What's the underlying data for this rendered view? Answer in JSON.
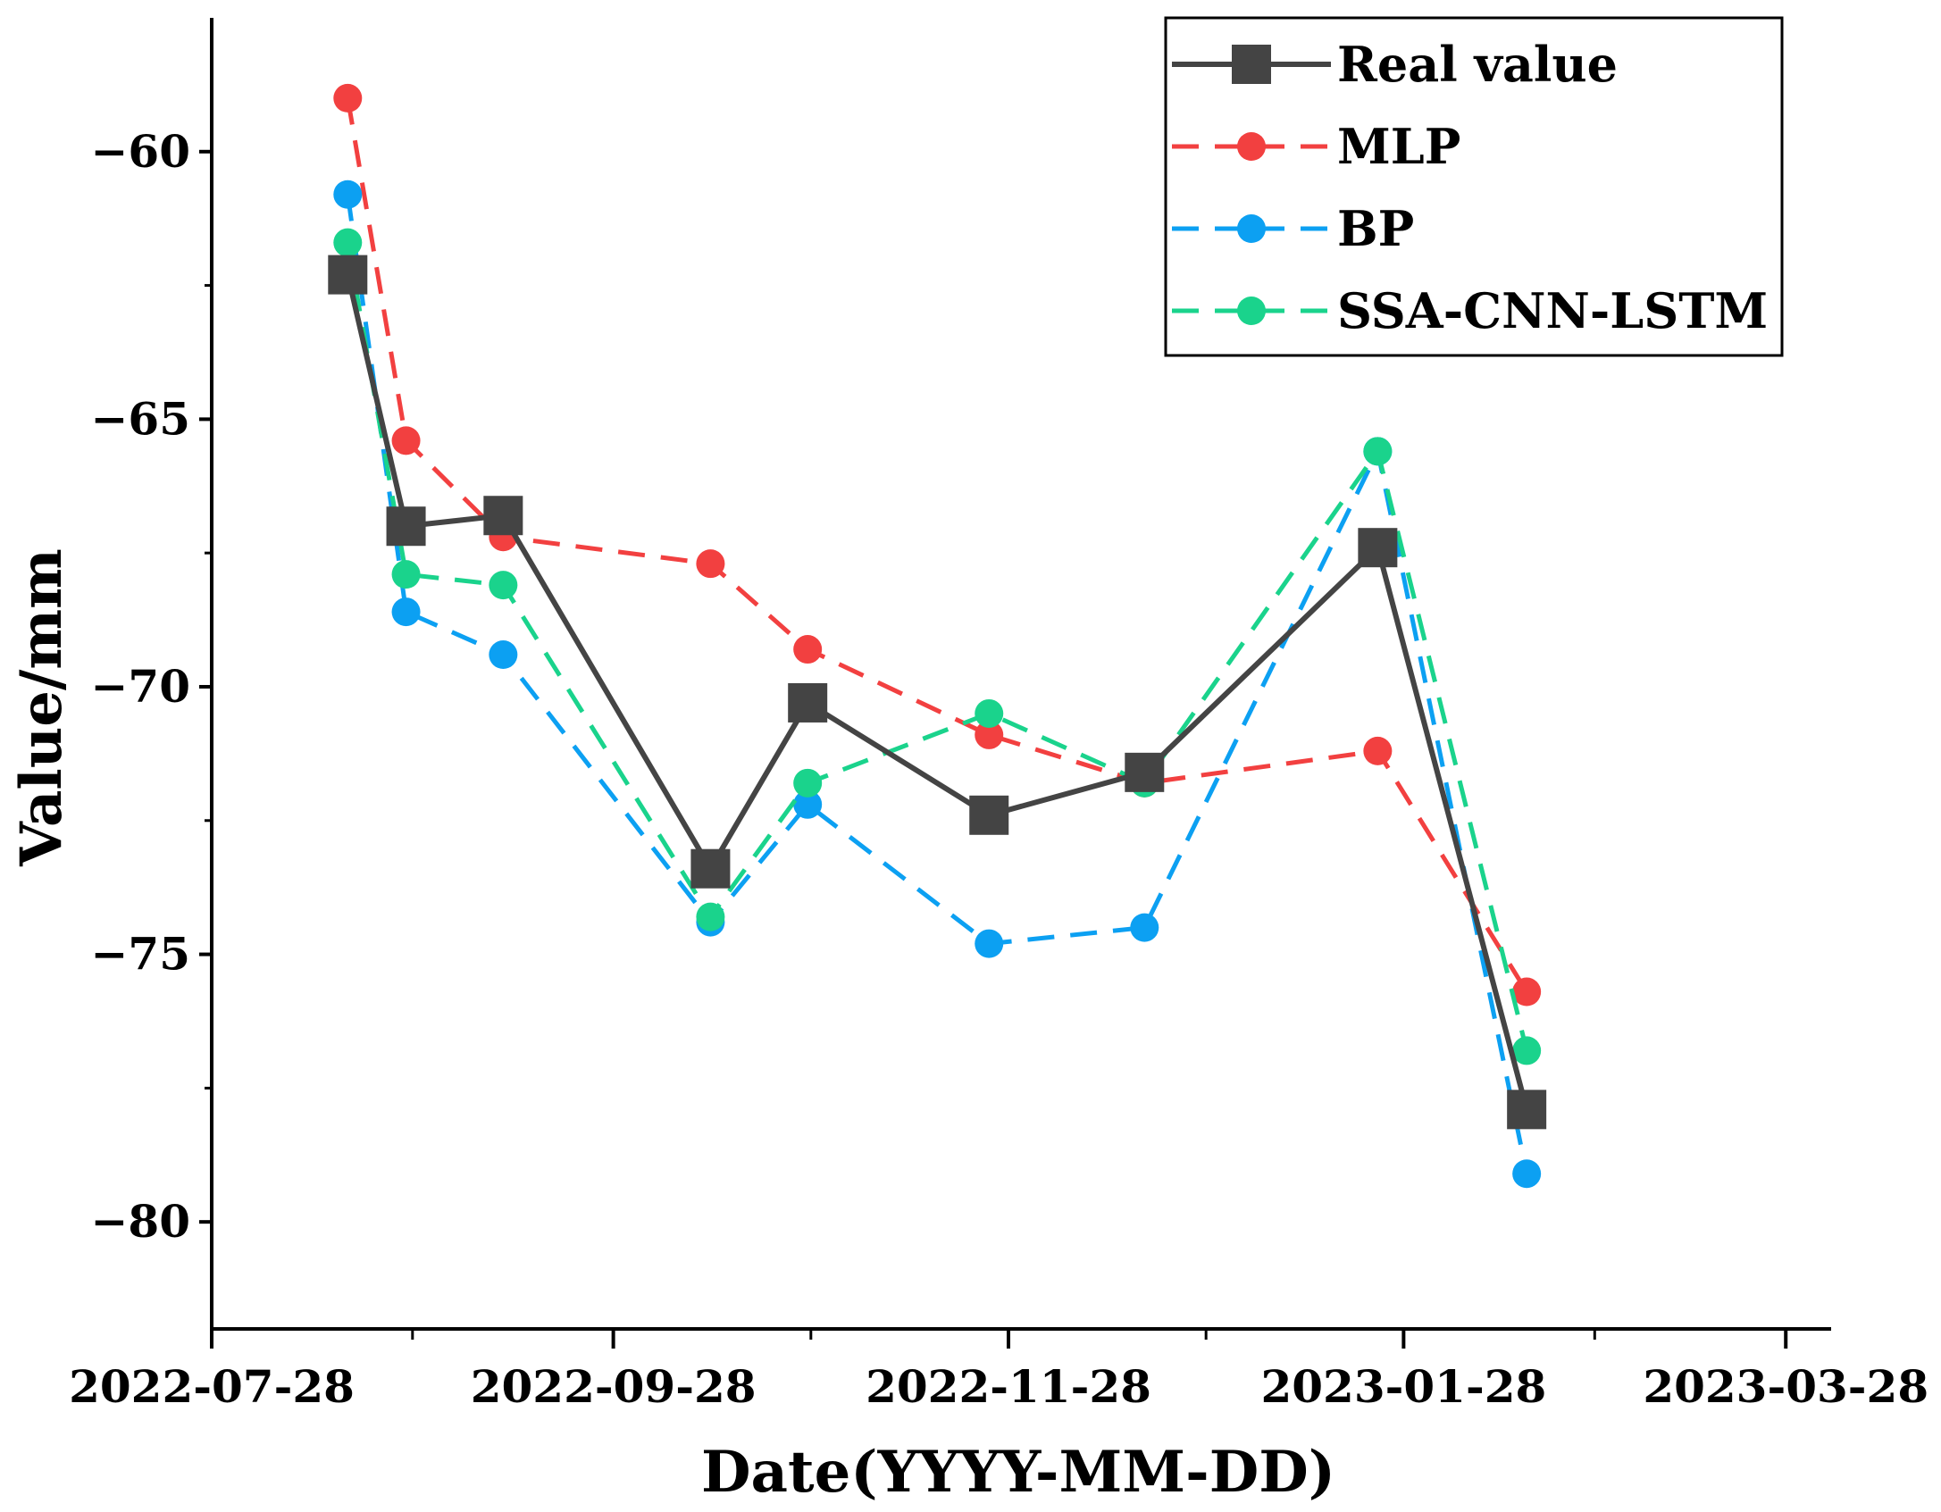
{
  "chart_data": {
    "type": "line",
    "title": "",
    "xlabel": "Date(YYYY-MM-DD)",
    "ylabel": "Value/mm",
    "x_ticks": [
      "2022-07-28",
      "2022-09-28",
      "2022-11-28",
      "2023-01-28",
      "2023-03-28"
    ],
    "x_tick_dates": [
      "2022-07-28",
      "2022-09-28",
      "2022-11-28",
      "2023-01-28",
      "2023-03-28"
    ],
    "xlim": [
      "2022-07-28",
      "2023-04-04"
    ],
    "y_ticks": [
      -60,
      -65,
      -70,
      -75,
      -80
    ],
    "y_tick_labels": [
      "−60",
      "−65",
      "−70",
      "−75",
      "−80"
    ],
    "ylim": [
      -82,
      -57.5
    ],
    "grid": false,
    "legend_position": "top-right",
    "x": [
      "2022-08-18",
      "2022-08-27",
      "2022-09-11",
      "2022-10-13",
      "2022-10-28",
      "2022-11-25",
      "2022-12-19",
      "2023-01-24",
      "2023-02-16"
    ],
    "series": [
      {
        "name": "Real value",
        "color": "#444444",
        "marker": "square",
        "line_style": "solid",
        "values": [
          -62.3,
          -67.0,
          -66.8,
          -73.4,
          -70.3,
          -72.4,
          -71.6,
          -67.4,
          -77.9
        ]
      },
      {
        "name": "MLP",
        "color": "#f24040",
        "marker": "circle",
        "line_style": "dashed",
        "values": [
          -59.0,
          -65.4,
          -67.2,
          -67.7,
          -69.3,
          -70.9,
          -71.8,
          -71.2,
          -75.7
        ]
      },
      {
        "name": "BP",
        "color": "#0ca0f2",
        "marker": "circle",
        "line_style": "dashed",
        "values": [
          -60.8,
          -68.6,
          -69.4,
          -74.4,
          -72.2,
          -74.8,
          -74.5,
          -65.6,
          -79.1
        ]
      },
      {
        "name": "SSA-CNN-LSTM",
        "color": "#1ad38c",
        "marker": "circle",
        "line_style": "dashed",
        "values": [
          -61.7,
          -67.9,
          -68.1,
          -74.3,
          -71.8,
          -70.5,
          -71.8,
          -65.6,
          -76.8
        ]
      }
    ]
  }
}
